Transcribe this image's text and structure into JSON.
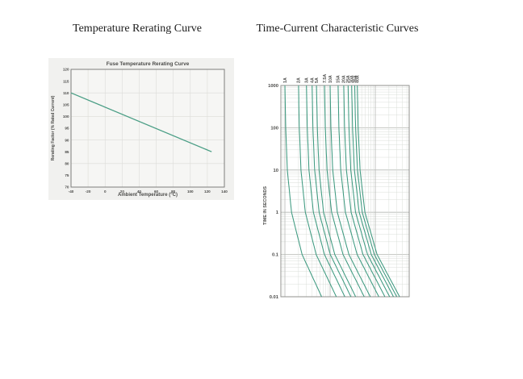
{
  "page": {
    "left_title": "Temperature Rerating Curve",
    "right_title": "Time-Current Characteristic Curves"
  },
  "chart_data": [
    {
      "id": "temperature_rerating",
      "type": "line",
      "title": "Fuse Temperature Rerating Curve",
      "xlabel": "Ambient Temperature (°C)",
      "ylabel": "Rerating Factor (% Rated Current)",
      "xlim": [
        -40,
        140
      ],
      "ylim": [
        70,
        120
      ],
      "x_ticks": [
        -40,
        -20,
        0,
        20,
        40,
        60,
        80,
        100,
        120,
        140
      ],
      "y_ticks": [
        120,
        115,
        110,
        105,
        100,
        95,
        90,
        85,
        80,
        75,
        70
      ],
      "grid": {
        "x_step": 20,
        "y_step": 10,
        "on": true
      },
      "series": [
        {
          "name": "rerating-factor",
          "x": [
            -40,
            125
          ],
          "y": [
            110,
            85
          ]
        }
      ],
      "colors": {
        "line": "#4a9e85",
        "grid": "#dcdcd8",
        "axis": "#7d7d7b",
        "text": "#4b4b49",
        "bg": "#f1f1ef",
        "plot_bg": "#f6f6f4"
      }
    },
    {
      "id": "time_current_characteristics",
      "type": "line",
      "x_scale": "log",
      "y_scale": "log",
      "ylabel": "TIME IN SECONDS",
      "y_ticks": [
        "1000",
        "100",
        "10",
        "1",
        "0.1",
        "0.01"
      ],
      "ylim": [
        0.01,
        1000
      ],
      "legend_position": "labels-above-curves",
      "ratings": [
        {
          "label": "1A",
          "amps": 1
        },
        {
          "label": "2A",
          "amps": 2
        },
        {
          "label": "3A",
          "amps": 3
        },
        {
          "label": "4A",
          "amps": 4
        },
        {
          "label": "5A",
          "amps": 5
        },
        {
          "label": "7.5A",
          "amps": 7.5
        },
        {
          "label": "10A",
          "amps": 10
        },
        {
          "label": "15A",
          "amps": 15
        },
        {
          "label": "20A",
          "amps": 20
        },
        {
          "label": "25A",
          "amps": 25
        },
        {
          "label": "30A",
          "amps": 30
        },
        {
          "label": "35A",
          "amps": 35
        },
        {
          "label": "40A",
          "amps": 40
        }
      ],
      "times_s": [
        1000,
        100,
        10,
        1,
        0.1,
        0.01
      ],
      "melt_multiplier_at_time": {
        "1000": 1.0,
        "100": 1.04,
        "10": 1.13,
        "1": 1.4,
        "0.1": 2.4,
        "0.01": 6.5
      },
      "spread_exponent_max": 1.15,
      "colors": {
        "curve": "#3e9a80",
        "grid_minor": "#d7dbd6",
        "grid_major": "#b5b8b4",
        "axis": "#90908e",
        "text": "#4b4b49"
      }
    }
  ]
}
